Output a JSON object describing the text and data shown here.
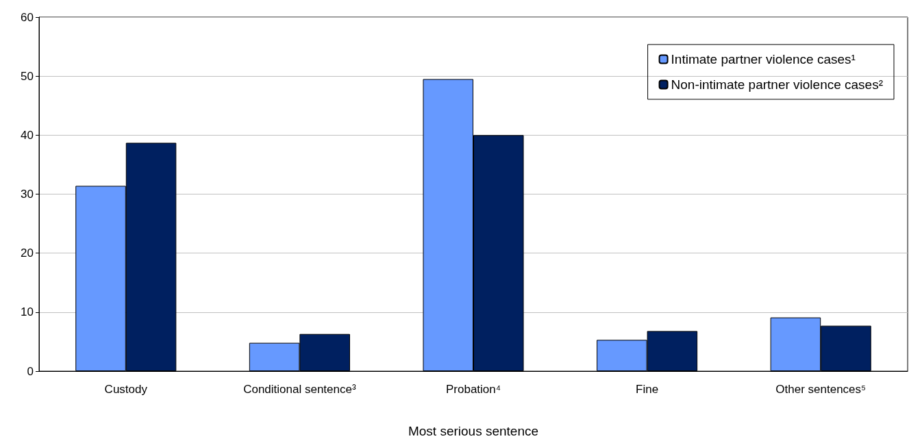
{
  "chart_data": {
    "type": "bar",
    "xlabel": "Most serious sentence",
    "categories": [
      "Custody",
      "Conditional sentence³",
      "Probation⁴",
      "Fine",
      "Other sentences⁵"
    ],
    "series": [
      {
        "name": "Intimate partner violence cases¹",
        "color": "#6699ff",
        "values": [
          31.4,
          4.8,
          49.5,
          5.3,
          9.1
        ]
      },
      {
        "name": "Non-intimate partner violence cases²",
        "color": "#002060",
        "values": [
          38.7,
          6.3,
          40.0,
          6.8,
          7.7
        ]
      }
    ],
    "ylim": [
      0,
      60
    ],
    "yticks": [
      0,
      10,
      20,
      30,
      40,
      50,
      60
    ],
    "grid": "y",
    "legend": "top right"
  }
}
